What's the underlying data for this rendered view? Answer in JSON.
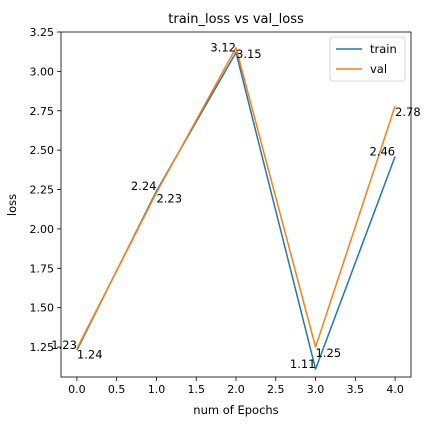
{
  "chart_data": {
    "type": "line",
    "title": "train_loss vs val_loss",
    "xlabel": "num of Epochs",
    "ylabel": "loss",
    "x": [
      0,
      1,
      2,
      3,
      4
    ],
    "xlim": [
      -0.2,
      4.2
    ],
    "ylim": [
      1.06,
      3.25
    ],
    "xticks": [
      0.0,
      0.5,
      1.0,
      1.5,
      2.0,
      2.5,
      3.0,
      3.5,
      4.0
    ],
    "xtick_labels": [
      "0.0",
      "0.5",
      "1.0",
      "1.5",
      "2.0",
      "2.5",
      "3.0",
      "3.5",
      "4.0"
    ],
    "yticks": [
      1.25,
      1.5,
      1.75,
      2.0,
      2.25,
      2.5,
      2.75,
      3.0,
      3.25
    ],
    "ytick_labels": [
      "1.25",
      "1.50",
      "1.75",
      "2.00",
      "2.25",
      "2.50",
      "2.75",
      "3.00",
      "3.25"
    ],
    "grid": false,
    "legend_position": "top-right",
    "series": [
      {
        "name": "train",
        "color": "#1f77b4",
        "values": [
          1.23,
          2.24,
          3.12,
          1.11,
          2.46
        ],
        "data_labels": [
          "1.23",
          "2.24",
          "3.12",
          "1.11",
          "2.46"
        ]
      },
      {
        "name": "val",
        "color": "#ff7f0e",
        "values": [
          1.24,
          2.23,
          3.15,
          1.25,
          2.78
        ],
        "data_labels": [
          "1.24",
          "2.23",
          "3.15",
          "1.25",
          "2.78"
        ]
      }
    ]
  }
}
